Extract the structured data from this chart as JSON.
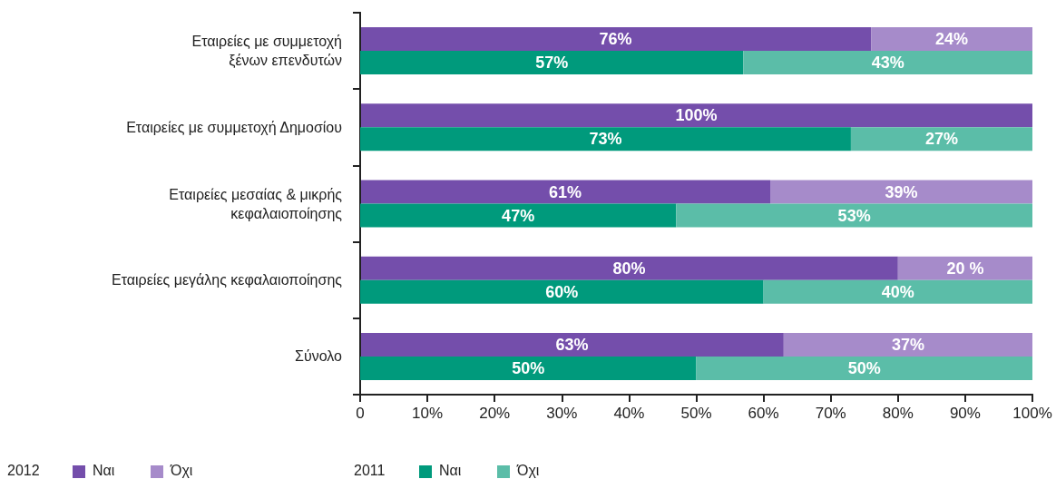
{
  "chart_data": [
    {
      "type": "bar",
      "orientation": "horizontal",
      "stacked": true,
      "legend_title": "2012",
      "categories": [
        "Εταιρείες με συμμετοχή\nξένων επενδυτών",
        "Εταιρείες με συμμετοχή Δημοσίου",
        "Εταιρείες μεσαίας & μικρής\nκεφαλαιοποίησης",
        "Εταιρείες μεγάλης κεφαλαιοποίησης",
        "Σύνολο"
      ],
      "series": [
        {
          "name": "Ναι",
          "color": "#744eab",
          "values": [
            76,
            100,
            61,
            80,
            63
          ],
          "value_labels": [
            "76%",
            "100%",
            "61%",
            "80%",
            "63%"
          ]
        },
        {
          "name": "Όχι",
          "color": "#a68bca",
          "values": [
            24,
            null,
            39,
            20,
            37
          ],
          "value_labels": [
            "24%",
            null,
            "39%",
            "20 %",
            "37%"
          ]
        }
      ],
      "xlim": [
        0,
        100
      ],
      "grid": false,
      "legend": "bottom left",
      "tick_labels": "y"
    },
    {
      "type": "bar",
      "orientation": "horizontal",
      "stacked": true,
      "legend_title": "2011",
      "categories": [
        null,
        null,
        null,
        null,
        null
      ],
      "series": [
        {
          "name": "Ναι",
          "color": "#009a7c",
          "values": [
            57,
            73,
            47,
            60,
            50
          ],
          "value_labels": [
            "57%",
            "73%",
            "47%",
            "60%",
            "50%"
          ]
        },
        {
          "name": "Όχι",
          "color": "#5bbda8",
          "values": [
            43,
            27,
            53,
            40,
            50
          ],
          "value_labels": [
            "43%",
            "27%",
            "53%",
            "40%",
            "50%"
          ]
        }
      ],
      "xlim": [
        0,
        100
      ],
      "xticks": [
        0,
        {
          "value": 10,
          "label": "10%"
        },
        {
          "value": 20,
          "label": "20%"
        },
        {
          "value": 30,
          "label": "30%"
        },
        {
          "value": 40,
          "label": "40%"
        },
        {
          "value": 50,
          "label": "50%"
        },
        {
          "value": 60,
          "label": "60%"
        },
        {
          "value": 70,
          "label": "70%"
        },
        {
          "value": 80,
          "label": "80%"
        },
        {
          "value": 90,
          "label": "90%"
        },
        {
          "value": 100,
          "label": "100%"
        }
      ],
      "grid": false,
      "legend": "bottom",
      "tick_labels": "x"
    }
  ]
}
